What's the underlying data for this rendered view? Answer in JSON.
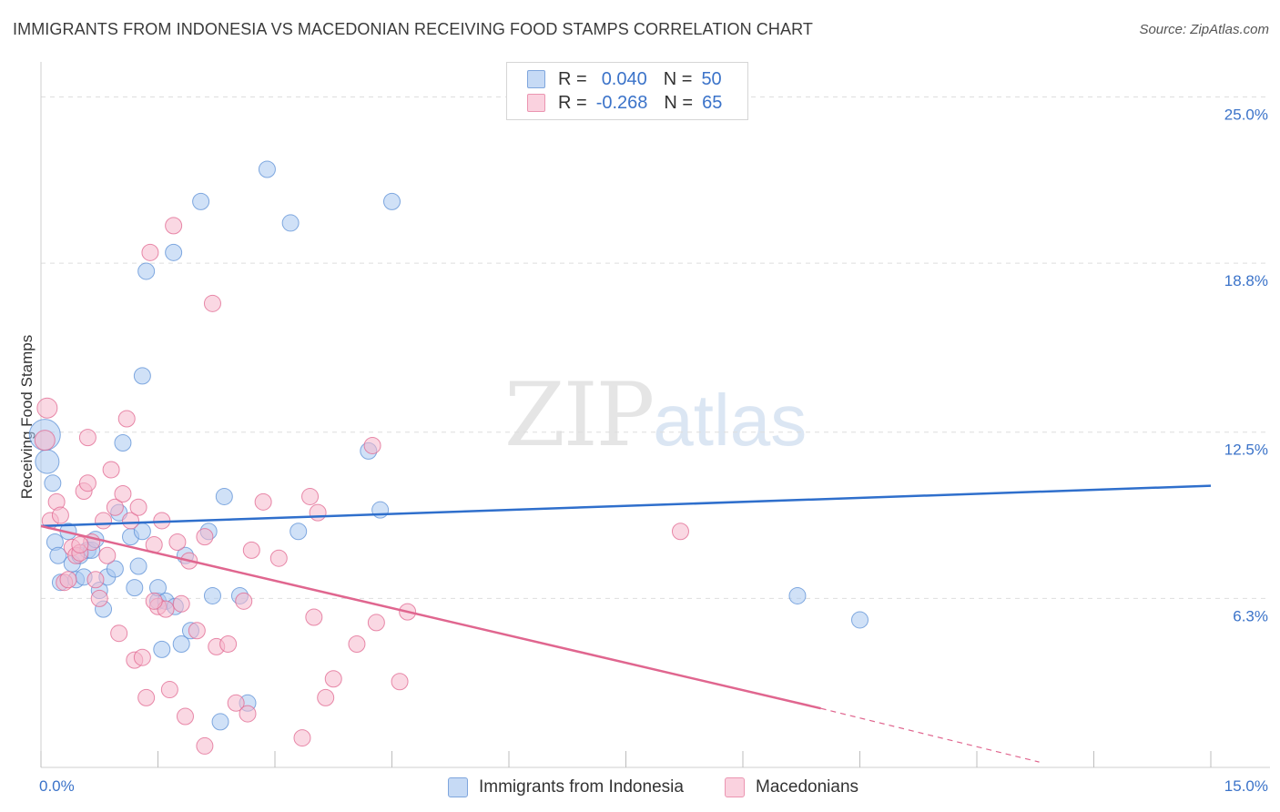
{
  "header": {
    "title": "IMMIGRANTS FROM INDONESIA VS MACEDONIAN RECEIVING FOOD STAMPS CORRELATION CHART",
    "source": "Source: ZipAtlas.com"
  },
  "watermark": {
    "zip": "ZIP",
    "atlas": "atlas"
  },
  "legend": {
    "rows": [
      {
        "r_label": "R =",
        "r_value": "0.040",
        "n_label": "N =",
        "n_value": "50",
        "color": "#a9c8f0"
      },
      {
        "r_label": "R =",
        "r_value": "-0.268",
        "n_label": "N =",
        "n_value": "65",
        "color": "#f6b8cc"
      }
    ]
  },
  "bottom_legend": {
    "series1": "Immigrants from Indonesia",
    "series2": "Macedonians"
  },
  "chart_data": {
    "type": "scatter",
    "title": "IMMIGRANTS FROM INDONESIA VS MACEDONIAN RECEIVING FOOD STAMPS CORRELATION CHART",
    "xlabel": "",
    "ylabel": "Receiving Food Stamps",
    "xlim": [
      0,
      15
    ],
    "ylim": [
      0,
      26
    ],
    "x_tick_labels": [
      "0.0%",
      "15.0%"
    ],
    "y_ticks": [
      6.3,
      12.5,
      18.8,
      25.0
    ],
    "y_tick_labels": [
      "6.3%",
      "12.5%",
      "18.8%",
      "25.0%"
    ],
    "grid": true,
    "series": [
      {
        "name": "Immigrants from Indonesia",
        "color": "#5b8fd6",
        "fill": "#a9c8f0",
        "trend": {
          "x": [
            0,
            15
          ],
          "y": [
            9.0,
            10.5
          ]
        },
        "points": [
          [
            0.05,
            12.4
          ],
          [
            0.08,
            11.4
          ],
          [
            0.15,
            10.6
          ],
          [
            0.18,
            8.4
          ],
          [
            0.22,
            7.9
          ],
          [
            0.25,
            6.9
          ],
          [
            0.35,
            8.8
          ],
          [
            0.4,
            7.6
          ],
          [
            0.45,
            7.0
          ],
          [
            0.5,
            7.9
          ],
          [
            0.55,
            7.1
          ],
          [
            0.6,
            8.1
          ],
          [
            0.65,
            8.1
          ],
          [
            0.7,
            8.5
          ],
          [
            0.75,
            6.6
          ],
          [
            0.8,
            5.9
          ],
          [
            0.85,
            7.1
          ],
          [
            0.95,
            7.4
          ],
          [
            1.0,
            9.5
          ],
          [
            1.05,
            12.1
          ],
          [
            1.15,
            8.6
          ],
          [
            1.2,
            6.7
          ],
          [
            1.25,
            7.5
          ],
          [
            1.3,
            8.8
          ],
          [
            1.3,
            14.6
          ],
          [
            1.35,
            18.5
          ],
          [
            1.5,
            6.2
          ],
          [
            1.5,
            6.7
          ],
          [
            1.55,
            4.4
          ],
          [
            1.6,
            6.2
          ],
          [
            1.7,
            19.2
          ],
          [
            1.72,
            6.0
          ],
          [
            1.8,
            4.6
          ],
          [
            1.85,
            7.9
          ],
          [
            1.92,
            5.1
          ],
          [
            2.05,
            21.1
          ],
          [
            2.15,
            8.8
          ],
          [
            2.2,
            6.4
          ],
          [
            2.3,
            1.7
          ],
          [
            2.35,
            10.1
          ],
          [
            2.55,
            6.4
          ],
          [
            2.65,
            2.4
          ],
          [
            2.9,
            22.3
          ],
          [
            3.2,
            20.3
          ],
          [
            3.3,
            8.8
          ],
          [
            4.2,
            11.8
          ],
          [
            4.35,
            9.6
          ],
          [
            4.5,
            21.1
          ],
          [
            9.7,
            6.4
          ],
          [
            10.5,
            5.5
          ]
        ]
      },
      {
        "name": "Macedonians",
        "color": "#e0668f",
        "fill": "#f6b8cc",
        "trend": {
          "x": [
            0,
            10
          ],
          "y": [
            9.0,
            2.2
          ]
        },
        "trend_dashed": {
          "x": [
            10,
            12.8
          ],
          "y": [
            2.2,
            0.2
          ]
        },
        "points": [
          [
            0.05,
            12.2
          ],
          [
            0.08,
            13.4
          ],
          [
            0.12,
            9.2
          ],
          [
            0.2,
            9.9
          ],
          [
            0.25,
            9.4
          ],
          [
            0.3,
            6.9
          ],
          [
            0.35,
            7.0
          ],
          [
            0.4,
            8.2
          ],
          [
            0.45,
            7.9
          ],
          [
            0.5,
            8.0
          ],
          [
            0.55,
            10.3
          ],
          [
            0.6,
            10.6
          ],
          [
            0.65,
            8.4
          ],
          [
            0.7,
            7.0
          ],
          [
            0.75,
            6.3
          ],
          [
            0.8,
            9.2
          ],
          [
            0.85,
            7.9
          ],
          [
            0.9,
            11.1
          ],
          [
            0.95,
            9.7
          ],
          [
            1.0,
            5.0
          ],
          [
            1.05,
            10.2
          ],
          [
            1.1,
            13.0
          ],
          [
            1.15,
            9.2
          ],
          [
            1.2,
            4.0
          ],
          [
            1.25,
            9.7
          ],
          [
            1.3,
            4.1
          ],
          [
            1.35,
            2.6
          ],
          [
            1.4,
            19.2
          ],
          [
            1.45,
            8.3
          ],
          [
            1.5,
            6.0
          ],
          [
            1.55,
            9.2
          ],
          [
            1.6,
            5.9
          ],
          [
            1.65,
            2.9
          ],
          [
            1.7,
            20.2
          ],
          [
            1.75,
            8.4
          ],
          [
            1.8,
            6.1
          ],
          [
            1.85,
            1.9
          ],
          [
            1.9,
            7.7
          ],
          [
            2.0,
            5.1
          ],
          [
            2.1,
            8.6
          ],
          [
            2.1,
            0.8
          ],
          [
            2.2,
            17.3
          ],
          [
            2.25,
            4.5
          ],
          [
            2.5,
            2.4
          ],
          [
            2.6,
            6.2
          ],
          [
            2.65,
            2.0
          ],
          [
            2.7,
            8.1
          ],
          [
            2.85,
            9.9
          ],
          [
            3.05,
            7.8
          ],
          [
            3.35,
            1.1
          ],
          [
            3.45,
            10.1
          ],
          [
            3.5,
            5.6
          ],
          [
            3.55,
            9.5
          ],
          [
            3.65,
            2.6
          ],
          [
            3.75,
            3.3
          ],
          [
            4.05,
            4.6
          ],
          [
            4.25,
            12.0
          ],
          [
            4.3,
            5.4
          ],
          [
            4.6,
            3.2
          ],
          [
            4.7,
            5.8
          ],
          [
            8.2,
            8.8
          ],
          [
            0.6,
            12.3
          ],
          [
            0.5,
            8.3
          ],
          [
            1.45,
            6.2
          ],
          [
            2.4,
            4.6
          ]
        ]
      }
    ]
  }
}
